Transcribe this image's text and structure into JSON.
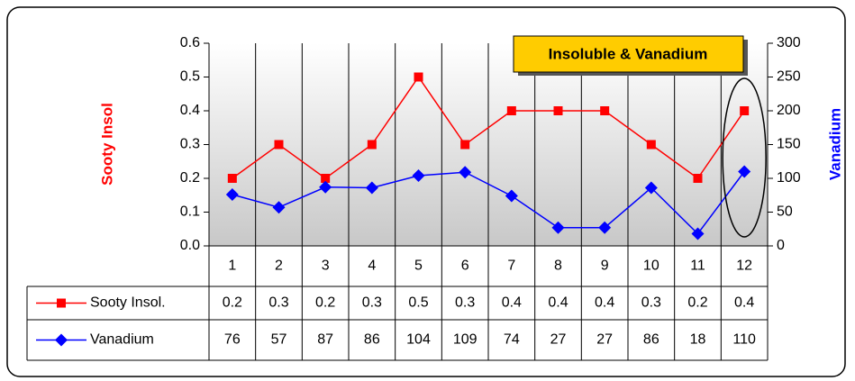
{
  "chart_data": {
    "type": "line",
    "title": "Insoluble & Vanadium",
    "y_label": "Sooty Insol",
    "y2_label": "Vanadium",
    "categories": [
      "1",
      "2",
      "3",
      "4",
      "5",
      "6",
      "7",
      "8",
      "9",
      "10",
      "11",
      "12"
    ],
    "series": [
      {
        "name": "Sooty Insol.",
        "color": "#ff0000",
        "marker": "square",
        "values": [
          0.2,
          0.3,
          0.2,
          0.3,
          0.5,
          0.3,
          0.4,
          0.4,
          0.4,
          0.3,
          0.2,
          0.4
        ]
      },
      {
        "name": "Vanadium",
        "color": "#0000ff",
        "marker": "diamond",
        "axis": "y2",
        "values": [
          76,
          57,
          87,
          86,
          104,
          109,
          74,
          27,
          27,
          86,
          18,
          110
        ]
      }
    ],
    "ylim": [
      0,
      0.6
    ],
    "yticks": [
      {
        "value": 0,
        "label": "0.0"
      },
      0.1,
      0.2,
      0.3,
      0.4,
      0.5,
      0.6
    ],
    "y2lim": [
      0,
      300
    ],
    "y2ticks": [
      0,
      50,
      100,
      150,
      200,
      250,
      300
    ],
    "data_table": true
  }
}
